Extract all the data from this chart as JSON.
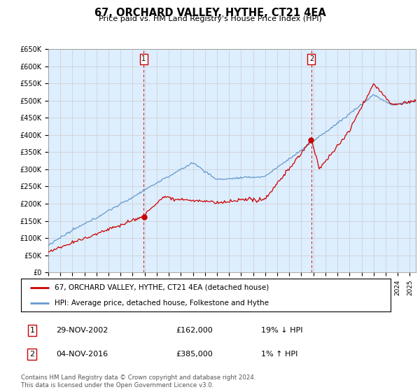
{
  "title": "67, ORCHARD VALLEY, HYTHE, CT21 4EA",
  "subtitle": "Price paid vs. HM Land Registry's House Price Index (HPI)",
  "ylim": [
    0,
    650000
  ],
  "xlim_start": 1995.0,
  "xlim_end": 2025.5,
  "transaction1_x": 2002.91,
  "transaction1_y": 162000,
  "transaction1_date": "29-NOV-2002",
  "transaction1_price": "£162,000",
  "transaction1_hpi": "19% ↓ HPI",
  "transaction2_x": 2016.84,
  "transaction2_y": 385000,
  "transaction2_date": "04-NOV-2016",
  "transaction2_price": "£385,000",
  "transaction2_hpi": "1% ↑ HPI",
  "line_color_property": "#cc0000",
  "line_color_hpi": "#6699cc",
  "vline_color": "#cc0000",
  "grid_color": "#cccccc",
  "background_color": "#ffffff",
  "plot_bg_color": "#ddeeff",
  "legend_label_property": "67, ORCHARD VALLEY, HYTHE, CT21 4EA (detached house)",
  "legend_label_hpi": "HPI: Average price, detached house, Folkestone and Hythe",
  "footer_text": "Contains HM Land Registry data © Crown copyright and database right 2024.\nThis data is licensed under the Open Government Licence v3.0."
}
